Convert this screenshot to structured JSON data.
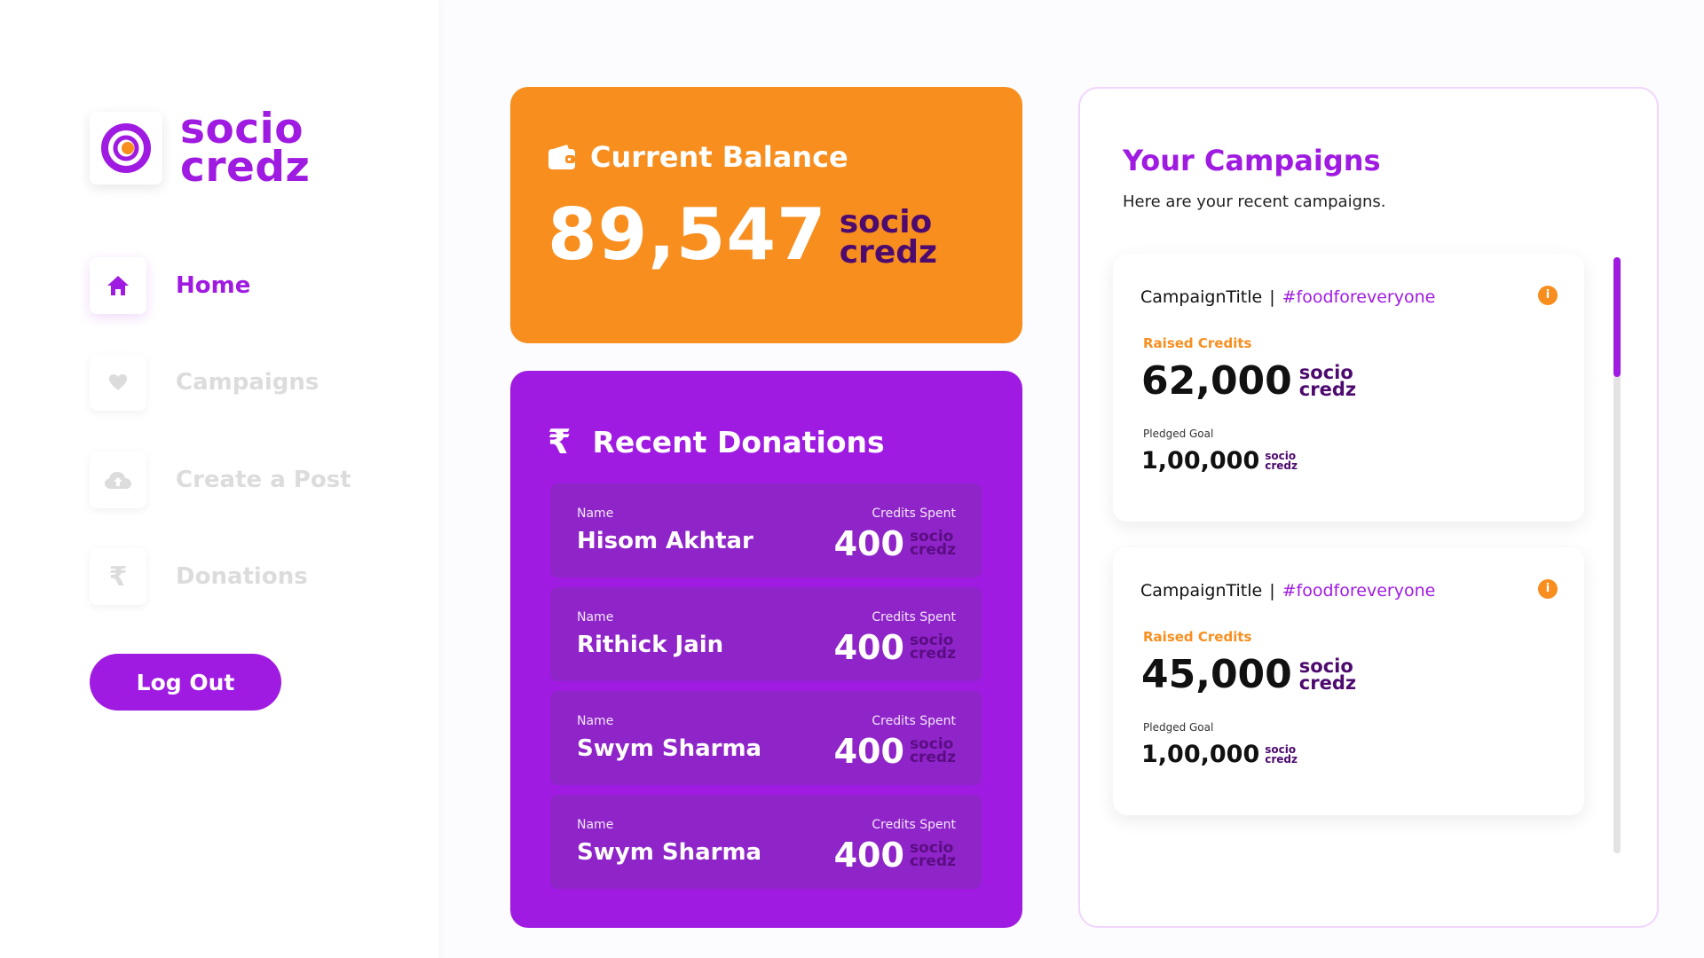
{
  "brand": {
    "line1": "socio",
    "line2": "credz",
    "color": "#a01be1"
  },
  "nav": {
    "home": "Home",
    "campaigns": "Campaigns",
    "create_post": "Create a Post",
    "donations": "Donations",
    "logout": "Log Out"
  },
  "balance": {
    "title": "Current Balance",
    "amount": "89,547",
    "unit1": "socio",
    "unit2": "credz"
  },
  "recent_donations": {
    "title": "Recent Donations",
    "symbol": "₹",
    "name_label": "Name",
    "credits_label": "Credits Spent",
    "unit1": "socio",
    "unit2": "credz",
    "items": [
      {
        "name": "Hisom Akhtar",
        "credits": "400"
      },
      {
        "name": "Rithick Jain",
        "credits": "400"
      },
      {
        "name": "Swym Sharma",
        "credits": "400"
      },
      {
        "name": "Swym Sharma",
        "credits": "400"
      }
    ]
  },
  "campaigns": {
    "title": "Your Campaigns",
    "subtitle": "Here are your recent campaigns.",
    "raised_label": "Raised Credits",
    "goal_label": "Pledged Goal",
    "unit1": "socio",
    "unit2": "credz",
    "items": [
      {
        "title": "CampaignTitle",
        "separator": "|",
        "tag": "#foodforeveryone",
        "raised": "62,000",
        "goal": "1,00,000"
      },
      {
        "title": "CampaignTitle",
        "separator": "|",
        "tag": "#foodforeveryone",
        "raised": "45,000",
        "goal": "1,00,000"
      }
    ]
  },
  "colors": {
    "orange": "#f78e1e",
    "purple": "#a01be1",
    "dark_purple": "#4d0a6f"
  }
}
